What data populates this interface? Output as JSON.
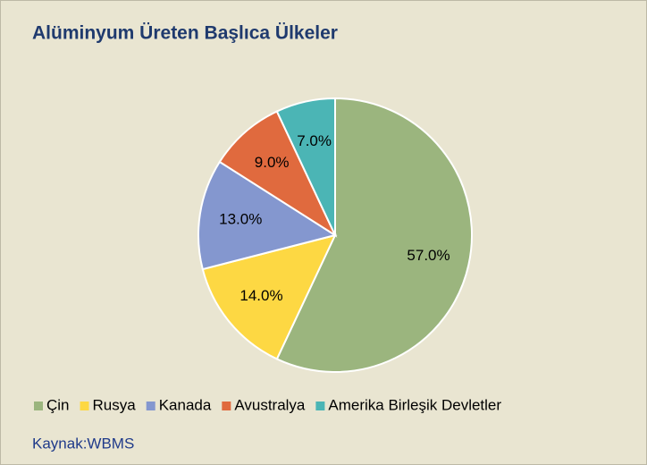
{
  "chart_data": {
    "type": "pie",
    "title": "Alüminyum Üreten  Başlıca Ülkeler",
    "categories": [
      "Çin",
      "Rusya",
      "Kanada",
      "Avustralya",
      "Amerika Birleşik Devletler"
    ],
    "values": [
      57,
      14,
      13,
      9,
      7
    ],
    "value_labels": [
      "57.0%",
      "14.0%",
      "13.0%",
      "9.0%",
      "7.0%"
    ],
    "colors": [
      "#9bb57e",
      "#fdd843",
      "#8497cf",
      "#e06a3e",
      "#4bb5b5"
    ],
    "legend": "bottom",
    "source": "Kaynak:WBMS"
  }
}
